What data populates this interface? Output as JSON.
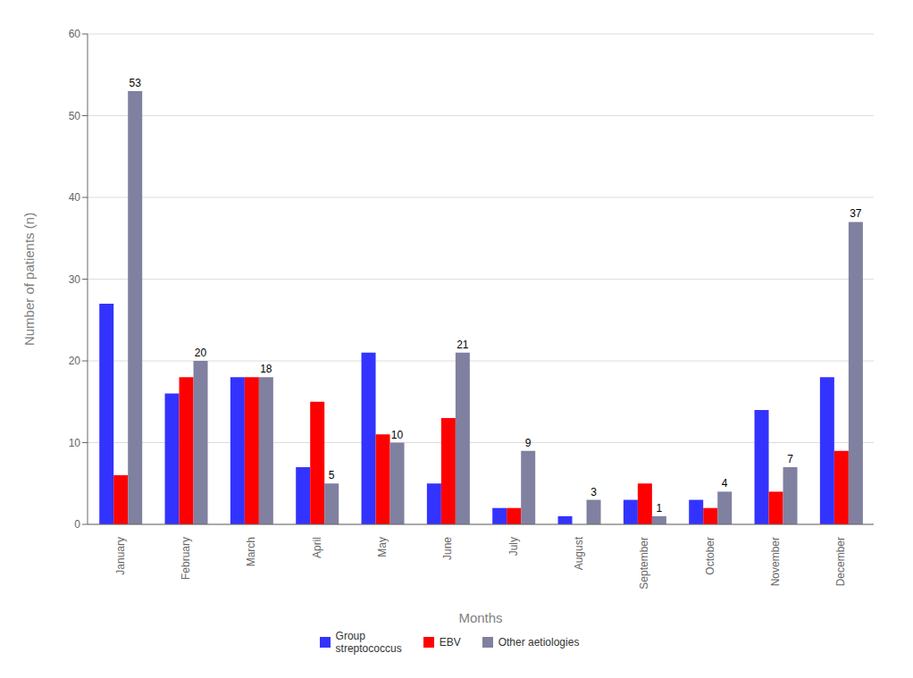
{
  "chart_data": {
    "type": "bar",
    "categories": [
      "January",
      "February",
      "March",
      "April",
      "May",
      "June",
      "July",
      "August",
      "September",
      "October",
      "November",
      "December"
    ],
    "series": [
      {
        "name": "Group\nstreptococcus",
        "color": "#3333FF",
        "values": [
          27,
          16,
          18,
          7,
          21,
          5,
          2,
          1,
          3,
          3,
          14,
          18
        ]
      },
      {
        "name": "EBV",
        "color": "#FF0000",
        "values": [
          6,
          18,
          18,
          15,
          11,
          13,
          2,
          0,
          5,
          2,
          4,
          9
        ]
      },
      {
        "name": "Other aetiologies",
        "color": "#8080A0",
        "values": [
          53,
          20,
          18,
          5,
          10,
          21,
          9,
          3,
          1,
          4,
          7,
          37
        ],
        "data_labels": true
      }
    ],
    "xlabel": "Months",
    "ylabel": "Number of patients (n)",
    "ylim": [
      0,
      60
    ],
    "yticks": [
      0,
      10,
      20,
      30,
      40,
      50,
      60
    ],
    "grid": true,
    "legend": "bottom"
  }
}
